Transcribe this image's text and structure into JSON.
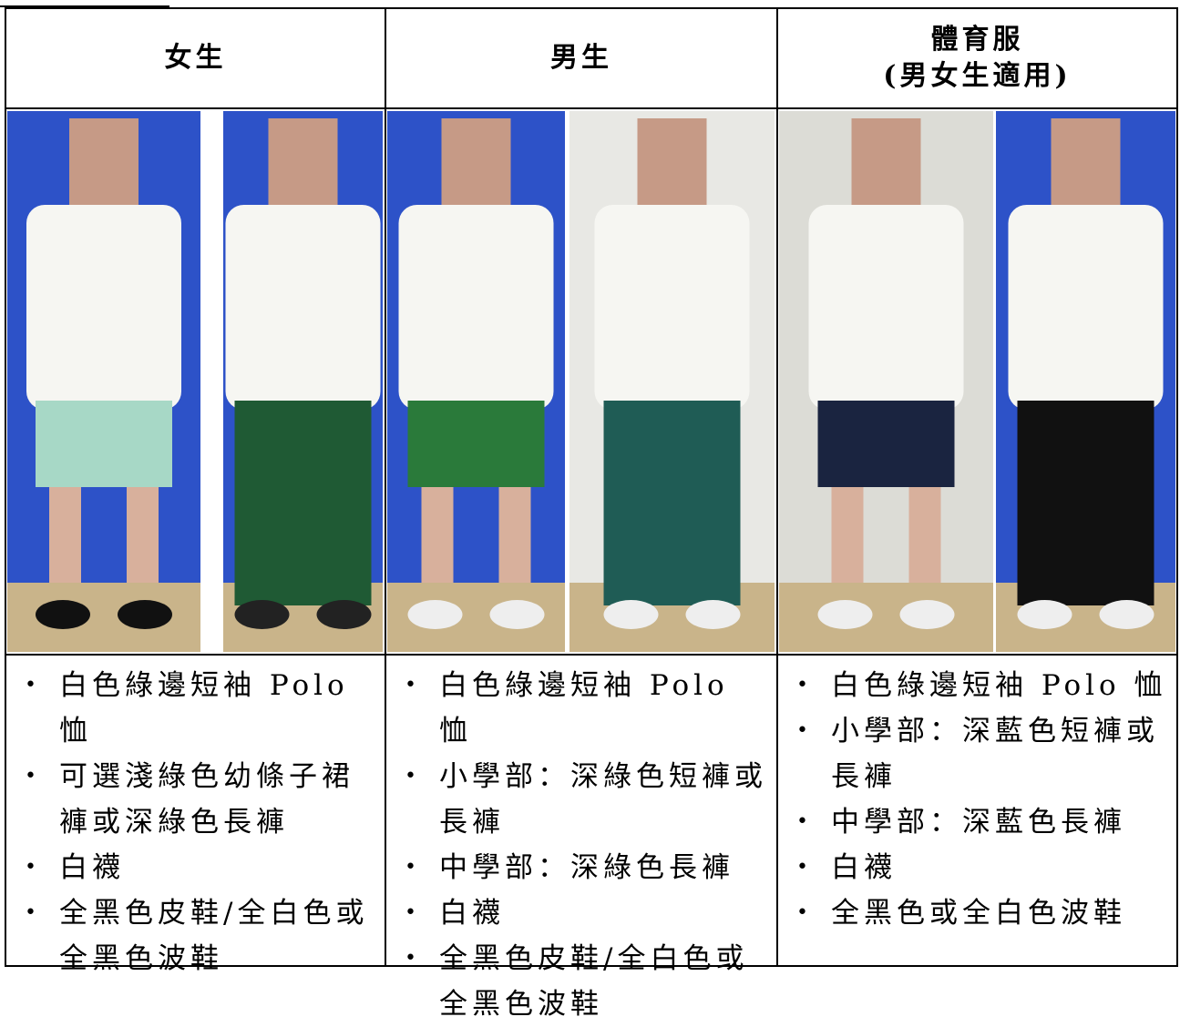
{
  "columns": [
    {
      "heading": [
        "女生"
      ],
      "items": [
        "白色綠邊短袖 Polo 恤",
        "可選淺綠色幼條子裙褲或深綠色長褲",
        "白襪",
        "全黑色皮鞋/全白色或全黑色波鞋"
      ]
    },
    {
      "heading": [
        "男生"
      ],
      "items": [
        "白色綠邊短袖 Polo 恤",
        "小學部：深綠色短褲或長褲",
        "中學部：深綠色長褲",
        "白襪",
        "全黑色皮鞋/全白色或全黑色波鞋"
      ]
    },
    {
      "heading": [
        "體育服",
        "(男女生適用)"
      ],
      "items": [
        "白色綠邊短袖 Polo 恤",
        "小學部：深藍色短褲或長褲",
        "中學部：深藍色長褲",
        "白襪",
        "全黑色或全白色波鞋"
      ]
    }
  ]
}
